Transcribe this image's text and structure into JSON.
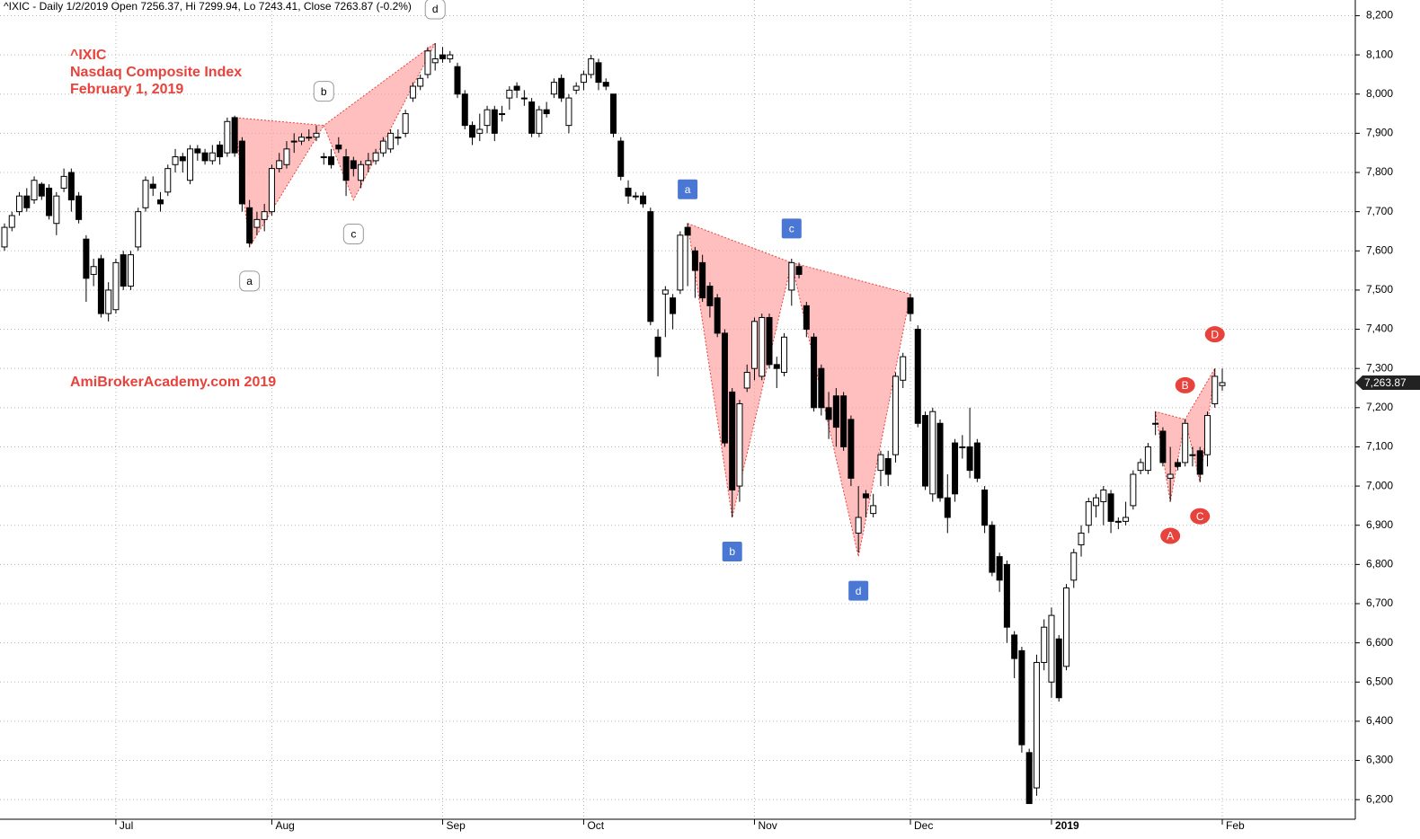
{
  "chart_data": {
    "type": "candlestick",
    "header": "^IXIC - Daily 1/2/2019 Open 7256.37, Hi 7299.94, Lo 7243.41, Close 7263.87 (-0.2%)",
    "title_lines": [
      "^IXIC",
      "Nasdaq Composite Index",
      "February 1, 2019"
    ],
    "watermark": "AmiBrokerAcademy.com  2019",
    "grid": true,
    "up_color": "#ffffff",
    "down_color": "#000000",
    "ylim": [
      6150,
      8240
    ],
    "yticks": [
      {
        "value": 6200,
        "label": "6,200"
      },
      {
        "value": 6300,
        "label": "6,300"
      },
      {
        "value": 6400,
        "label": "6,400"
      },
      {
        "value": 6500,
        "label": "6,500"
      },
      {
        "value": 6600,
        "label": "6,600"
      },
      {
        "value": 6700,
        "label": "6,700"
      },
      {
        "value": 6800,
        "label": "6,800"
      },
      {
        "value": 6900,
        "label": "6,900"
      },
      {
        "value": 7000,
        "label": "7,000"
      },
      {
        "value": 7100,
        "label": "7,100"
      },
      {
        "value": 7200,
        "label": "7,200"
      },
      {
        "value": 7300,
        "label": "7,300"
      },
      {
        "value": 7400,
        "label": "7,400"
      },
      {
        "value": 7500,
        "label": "7,500"
      },
      {
        "value": 7600,
        "label": "7,600"
      },
      {
        "value": 7700,
        "label": "7,700"
      },
      {
        "value": 7800,
        "label": "7,800"
      },
      {
        "value": 7900,
        "label": "7,900"
      },
      {
        "value": 8000,
        "label": "8,000"
      },
      {
        "value": 8100,
        "label": "8,100"
      },
      {
        "value": 8200,
        "label": "8,200"
      }
    ],
    "last_price": {
      "value": 7263.87,
      "label": "7,263.87"
    },
    "categories": [
      null,
      null,
      null,
      null,
      null,
      null,
      null,
      null,
      null,
      null,
      null,
      null,
      null,
      null,
      null,
      "Jul",
      null,
      null,
      null,
      null,
      null,
      null,
      null,
      null,
      null,
      null,
      null,
      null,
      null,
      null,
      null,
      null,
      null,
      null,
      null,
      null,
      "Aug",
      null,
      null,
      null,
      null,
      null,
      null,
      null,
      null,
      null,
      null,
      null,
      null,
      null,
      null,
      null,
      null,
      null,
      null,
      null,
      null,
      null,
      null,
      "Sep",
      null,
      null,
      null,
      null,
      null,
      null,
      null,
      null,
      null,
      null,
      null,
      null,
      null,
      null,
      null,
      null,
      null,
      null,
      "Oct",
      null,
      null,
      null,
      null,
      null,
      null,
      null,
      null,
      null,
      null,
      null,
      null,
      null,
      null,
      null,
      null,
      null,
      null,
      null,
      null,
      null,
      null,
      "Nov",
      null,
      null,
      null,
      null,
      null,
      null,
      null,
      null,
      null,
      null,
      null,
      null,
      null,
      null,
      null,
      null,
      null,
      null,
      null,
      null,
      "Dec",
      null,
      null,
      null,
      null,
      null,
      null,
      null,
      null,
      null,
      null,
      null,
      null,
      null,
      null,
      null,
      null,
      null,
      null,
      "2019",
      null,
      null,
      null,
      null,
      null,
      null,
      null,
      null,
      null,
      null,
      null,
      null,
      null,
      null,
      null,
      null,
      null,
      null,
      null,
      null,
      null,
      null,
      "Feb"
    ],
    "ohlc": [
      [
        7610,
        7670,
        7600,
        7660
      ],
      [
        7660,
        7700,
        7650,
        7690
      ],
      [
        7700,
        7750,
        7690,
        7740
      ],
      [
        7740,
        7760,
        7700,
        7710
      ],
      [
        7730,
        7790,
        7720,
        7780
      ],
      [
        7770,
        7775,
        7730,
        7740
      ],
      [
        7760,
        7770,
        7680,
        7690
      ],
      [
        7670,
        7750,
        7640,
        7740
      ],
      [
        7760,
        7810,
        7750,
        7790
      ],
      [
        7800,
        7810,
        7700,
        7730
      ],
      [
        7740,
        7750,
        7670,
        7680
      ],
      [
        7630,
        7640,
        7470,
        7530
      ],
      [
        7540,
        7580,
        7510,
        7560
      ],
      [
        7580,
        7590,
        7430,
        7440
      ],
      [
        7440,
        7520,
        7420,
        7500
      ],
      [
        7450,
        7580,
        7440,
        7570
      ],
      [
        7590,
        7600,
        7500,
        7510
      ],
      [
        7510,
        7600,
        7500,
        7590
      ],
      [
        7610,
        7710,
        7600,
        7700
      ],
      [
        7710,
        7790,
        7700,
        7780
      ],
      [
        7770,
        7790,
        7740,
        7760
      ],
      [
        7730,
        7750,
        7700,
        7720
      ],
      [
        7750,
        7820,
        7740,
        7810
      ],
      [
        7820,
        7860,
        7800,
        7840
      ],
      [
        7840,
        7850,
        7800,
        7830
      ],
      [
        7780,
        7870,
        7770,
        7860
      ],
      [
        7860,
        7870,
        7830,
        7850
      ],
      [
        7850,
        7860,
        7820,
        7830
      ],
      [
        7830,
        7870,
        7820,
        7850
      ],
      [
        7870,
        7880,
        7820,
        7840
      ],
      [
        7850,
        7940,
        7840,
        7930
      ],
      [
        7940,
        7945,
        7840,
        7850
      ],
      [
        7880,
        7890,
        7700,
        7720
      ],
      [
        7710,
        7730,
        7610,
        7620
      ],
      [
        7660,
        7700,
        7640,
        7680
      ],
      [
        7680,
        7720,
        7650,
        7700
      ],
      [
        7700,
        7820,
        7690,
        7810
      ],
      [
        7810,
        7850,
        7800,
        7830
      ],
      [
        7820,
        7880,
        7810,
        7860
      ],
      [
        7880,
        7900,
        7850,
        7880
      ],
      [
        7880,
        7900,
        7870,
        7890
      ],
      [
        7890,
        7910,
        7880,
        7890
      ],
      [
        7890,
        7920,
        7880,
        7900
      ],
      [
        7840,
        7850,
        7820,
        7840
      ],
      [
        7840,
        7860,
        7810,
        7820
      ],
      [
        7870,
        7890,
        7850,
        7860
      ],
      [
        7840,
        7860,
        7740,
        7780
      ],
      [
        7830,
        7840,
        7790,
        7810
      ],
      [
        7780,
        7830,
        7760,
        7820
      ],
      [
        7820,
        7850,
        7800,
        7830
      ],
      [
        7830,
        7860,
        7820,
        7850
      ],
      [
        7850,
        7890,
        7840,
        7880
      ],
      [
        7860,
        7910,
        7850,
        7900
      ],
      [
        7890,
        7910,
        7870,
        7890
      ],
      [
        7900,
        7960,
        7890,
        7950
      ],
      [
        7990,
        8030,
        7980,
        8020
      ],
      [
        8020,
        8050,
        8010,
        8040
      ],
      [
        8050,
        8120,
        8040,
        8110
      ],
      [
        8080,
        8130,
        8060,
        8090
      ],
      [
        8100,
        8120,
        8080,
        8090
      ],
      [
        8090,
        8110,
        8080,
        8100
      ],
      [
        8070,
        8080,
        7990,
        8000
      ],
      [
        8000,
        8010,
        7910,
        7920
      ],
      [
        7920,
        7930,
        7870,
        7890
      ],
      [
        7900,
        7950,
        7880,
        7910
      ],
      [
        7920,
        7970,
        7900,
        7960
      ],
      [
        7960,
        7970,
        7880,
        7900
      ],
      [
        7950,
        7970,
        7930,
        7950
      ],
      [
        7990,
        8020,
        7960,
        8010
      ],
      [
        8020,
        8030,
        7990,
        8010
      ],
      [
        7990,
        8010,
        7970,
        7990
      ],
      [
        7980,
        7990,
        7890,
        7900
      ],
      [
        7900,
        7970,
        7890,
        7960
      ],
      [
        7960,
        7980,
        7940,
        7950
      ],
      [
        8000,
        8040,
        7990,
        8030
      ],
      [
        8040,
        8050,
        7980,
        7990
      ],
      [
        7920,
        8000,
        7900,
        7990
      ],
      [
        8010,
        8030,
        8000,
        8020
      ],
      [
        8030,
        8060,
        8010,
        8050
      ],
      [
        8050,
        8100,
        8040,
        8090
      ],
      [
        8080,
        8090,
        8010,
        8030
      ],
      [
        8030,
        8040,
        8010,
        8020
      ],
      [
        8000,
        8000,
        7890,
        7900
      ],
      [
        7880,
        7890,
        7780,
        7790
      ],
      [
        7760,
        7780,
        7720,
        7740
      ],
      [
        7740,
        7750,
        7730,
        7740
      ],
      [
        7740,
        7750,
        7710,
        7720
      ],
      [
        7700,
        7710,
        7410,
        7420
      ],
      [
        7380,
        7400,
        7280,
        7330
      ],
      [
        7490,
        7510,
        7380,
        7500
      ],
      [
        7480,
        7490,
        7400,
        7440
      ],
      [
        7500,
        7650,
        7490,
        7640
      ],
      [
        7660,
        7670,
        7510,
        7640
      ],
      [
        7600,
        7610,
        7480,
        7550
      ],
      [
        7570,
        7590,
        7470,
        7480
      ],
      [
        7510,
        7520,
        7430,
        7460
      ],
      [
        7480,
        7490,
        7380,
        7390
      ],
      [
        7390,
        7400,
        7100,
        7110
      ],
      [
        7240,
        7250,
        6920,
        6990
      ],
      [
        7000,
        7220,
        6960,
        7210
      ],
      [
        7250,
        7310,
        7240,
        7290
      ],
      [
        7300,
        7430,
        7270,
        7420
      ],
      [
        7280,
        7440,
        7270,
        7430
      ],
      [
        7430,
        7440,
        7300,
        7310
      ],
      [
        7310,
        7330,
        7250,
        7300
      ],
      [
        7290,
        7390,
        7280,
        7380
      ],
      [
        7500,
        7580,
        7460,
        7570
      ],
      [
        7560,
        7570,
        7530,
        7540
      ],
      [
        7460,
        7470,
        7380,
        7400
      ],
      [
        7380,
        7390,
        7190,
        7200
      ],
      [
        7300,
        7310,
        7180,
        7200
      ],
      [
        7200,
        7240,
        7120,
        7170
      ],
      [
        7230,
        7250,
        7100,
        7150
      ],
      [
        7230,
        7240,
        7090,
        7100
      ],
      [
        7170,
        7180,
        7000,
        7020
      ],
      [
        6880,
        7000,
        6830,
        6920
      ],
      [
        6980,
        6990,
        6920,
        6970
      ],
      [
        6930,
        6980,
        6920,
        6950
      ],
      [
        7040,
        7090,
        7000,
        7080
      ],
      [
        7070,
        7090,
        7000,
        7030
      ],
      [
        7080,
        7290,
        7060,
        7280
      ],
      [
        7270,
        7340,
        7250,
        7330
      ],
      [
        7480,
        7490,
        7420,
        7440
      ],
      [
        7400,
        7410,
        7150,
        7160
      ],
      [
        7180,
        7190,
        6990,
        7000
      ],
      [
        6980,
        7200,
        6960,
        7190
      ],
      [
        7160,
        7170,
        6960,
        6970
      ],
      [
        6970,
        7030,
        6880,
        6920
      ],
      [
        7110,
        7120,
        6960,
        6980
      ],
      [
        7100,
        7130,
        7070,
        7100
      ],
      [
        7100,
        7200,
        7020,
        7040
      ],
      [
        7110,
        7120,
        7010,
        7020
      ],
      [
        6990,
        7000,
        6880,
        6900
      ],
      [
        6900,
        6910,
        6770,
        6780
      ],
      [
        6820,
        6830,
        6730,
        6760
      ],
      [
        6800,
        6810,
        6600,
        6640
      ],
      [
        6620,
        6630,
        6510,
        6560
      ],
      [
        6580,
        6590,
        6320,
        6340
      ],
      [
        6320,
        6330,
        6190,
        6190
      ],
      [
        6230,
        6570,
        6210,
        6550
      ],
      [
        6550,
        6660,
        6530,
        6640
      ],
      [
        6500,
        6690,
        6460,
        6670
      ],
      [
        6610,
        6620,
        6450,
        6460
      ],
      [
        6540,
        6750,
        6530,
        6740
      ],
      [
        6760,
        6840,
        6740,
        6830
      ],
      [
        6850,
        6900,
        6820,
        6880
      ],
      [
        6900,
        6970,
        6880,
        6960
      ],
      [
        6950,
        6980,
        6920,
        6970
      ],
      [
        6960,
        7000,
        6900,
        6990
      ],
      [
        6980,
        6990,
        6880,
        6910
      ],
      [
        6910,
        6920,
        6890,
        6910
      ],
      [
        6910,
        6960,
        6900,
        6920
      ],
      [
        6950,
        7040,
        6940,
        7030
      ],
      [
        7040,
        7070,
        7030,
        7060
      ],
      [
        7040,
        7110,
        7030,
        7100
      ],
      [
        7160,
        7190,
        7130,
        7160
      ],
      [
        7140,
        7150,
        7050,
        7060
      ],
      [
        7020,
        7100,
        6960,
        7030
      ],
      [
        7060,
        7070,
        7040,
        7050
      ],
      [
        7060,
        7170,
        7050,
        7160
      ],
      [
        7080,
        7100,
        7050,
        7080
      ],
      [
        7090,
        7100,
        7010,
        7030
      ],
      [
        7080,
        7190,
        7050,
        7180
      ],
      [
        7210,
        7300,
        7200,
        7280
      ],
      [
        7256.37,
        7299.94,
        7243.41,
        7263.87
      ]
    ],
    "patterns": [
      {
        "points_x": [
          31,
          33,
          43,
          47,
          58
        ],
        "points_y": [
          7940,
          7610,
          7920,
          7730,
          8130
        ],
        "labels": [
          null,
          "a",
          "b",
          "c",
          "d"
        ],
        "label_fill": "#ffffff",
        "label_text": "#000000",
        "label_shape": "rounded"
      },
      {
        "points_x": [
          92,
          98,
          106,
          115,
          122
        ],
        "points_y": [
          7670,
          6920,
          7570,
          6820,
          7490
        ],
        "labels": [
          "a",
          "b",
          "c",
          "d",
          null
        ],
        "label_fill": "#4a77d4",
        "label_text": "#ffffff",
        "label_shape": "square"
      },
      {
        "points_x": [
          155,
          157,
          159,
          161,
          163
        ],
        "points_y": [
          7190,
          6960,
          7170,
          7010,
          7300
        ],
        "labels": [
          null,
          "A",
          "B",
          "C",
          "D"
        ],
        "label_fill": "#e8423c",
        "label_text": "#ffffff",
        "label_shape": "ellipse"
      }
    ]
  }
}
